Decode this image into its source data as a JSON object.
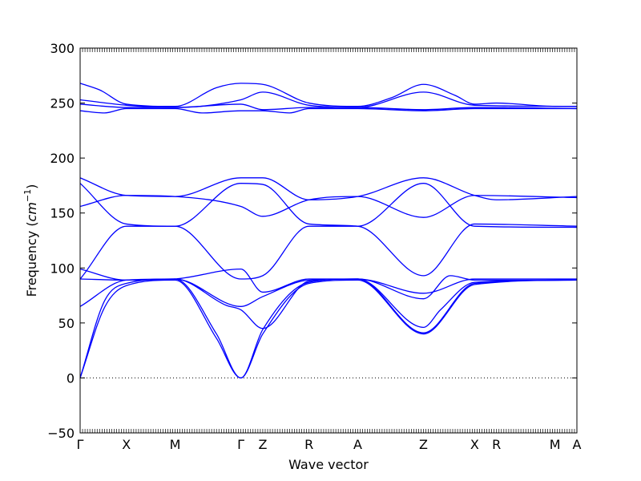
{
  "chart_data": {
    "type": "line",
    "xlabel": "Wave vector",
    "ylabel": "Frequency",
    "ylabel_unit": "cm",
    "ylabel_unit_exp": "−1",
    "ylim": [
      -50,
      300
    ],
    "yticks": [
      -50,
      0,
      50,
      100,
      150,
      200,
      250,
      300
    ],
    "xlim": [
      0,
      10.2
    ],
    "xticks": [
      {
        "pos": 0.0,
        "label": "Γ"
      },
      {
        "pos": 0.95,
        "label": "X"
      },
      {
        "pos": 1.95,
        "label": "M"
      },
      {
        "pos": 3.3,
        "label": "Γ"
      },
      {
        "pos": 3.75,
        "label": "Z"
      },
      {
        "pos": 4.7,
        "label": "R"
      },
      {
        "pos": 5.7,
        "label": "A"
      },
      {
        "pos": 7.05,
        "label": "Z"
      },
      {
        "pos": 8.1,
        "label": "X"
      },
      {
        "pos": 8.55,
        "label": "R"
      },
      {
        "pos": 9.75,
        "label": "M"
      },
      {
        "pos": 10.2,
        "label": "A"
      }
    ],
    "zero_line": true,
    "series_color": "#0000ff",
    "series": [
      {
        "x": [
          0,
          0.4,
          0.95,
          1.95,
          2.8,
          3.3,
          3.75,
          4.7,
          5.7,
          6.4,
          7.05,
          7.7,
          8.1,
          8.55,
          9.75,
          10.2
        ],
        "y": [
          268,
          262,
          249,
          247,
          264,
          268,
          267,
          250,
          247,
          255,
          267,
          257,
          249,
          250,
          247,
          247
        ]
      },
      {
        "x": [
          0,
          0.95,
          1.95,
          3.3,
          3.75,
          4.7,
          5.7,
          7.05,
          8.1,
          10.2
        ],
        "y": [
          253,
          248,
          246,
          253,
          260,
          248,
          246,
          260,
          248,
          247
        ]
      },
      {
        "x": [
          0,
          0.95,
          1.95,
          3.3,
          3.75,
          4.7,
          5.7,
          7.05,
          8.1,
          10.2
        ],
        "y": [
          249,
          246,
          246,
          249,
          244,
          246,
          246,
          244,
          246,
          245
        ]
      },
      {
        "x": [
          0,
          0.5,
          0.95,
          1.95,
          2.5,
          3.3,
          3.75,
          4.3,
          4.7,
          5.7,
          7.05,
          8.1,
          10.2
        ],
        "y": [
          243,
          241,
          245,
          245,
          241,
          243,
          243,
          241,
          245,
          245,
          243,
          245,
          245
        ]
      },
      {
        "x": [
          0,
          0.95,
          1.95,
          3.3,
          3.75,
          4.7,
          5.7,
          7.05,
          8.1,
          8.55,
          10.2
        ],
        "y": [
          182,
          166,
          165,
          182,
          182,
          162,
          165,
          182,
          166,
          162,
          165
        ]
      },
      {
        "x": [
          0,
          0.95,
          1.95,
          3.3,
          3.75,
          4.7,
          5.7,
          7.05,
          8.1,
          10.2
        ],
        "y": [
          177,
          140,
          138,
          177,
          176,
          140,
          138,
          93,
          140,
          138
        ]
      },
      {
        "x": [
          0,
          0.95,
          1.95,
          3.3,
          3.75,
          4.7,
          5.7,
          7.05,
          8.1,
          10.2
        ],
        "y": [
          156,
          166,
          165,
          156,
          147,
          162,
          165,
          146,
          166,
          164
        ]
      },
      {
        "x": [
          0,
          0.95,
          1.95,
          3.3,
          3.75,
          4.7,
          5.7,
          7.05,
          8.1,
          10.2
        ],
        "y": [
          90,
          138,
          138,
          90,
          93,
          138,
          138,
          177,
          138,
          137
        ]
      },
      {
        "x": [
          0,
          0.95,
          1.95,
          3.3,
          3.75,
          4.7,
          5.7,
          7.05,
          8.1,
          10.2
        ],
        "y": [
          99,
          89,
          90,
          99,
          78,
          90,
          90,
          77,
          90,
          90
        ]
      },
      {
        "x": [
          0,
          0.95,
          1.95,
          3.3,
          3.75,
          4.7,
          5.7,
          7.05,
          7.6,
          8.1,
          10.2
        ],
        "y": [
          90,
          89,
          90,
          65,
          74,
          89,
          90,
          72,
          93,
          89,
          89
        ]
      },
      {
        "x": [
          0,
          0.95,
          1.95,
          3.0,
          3.3,
          3.75,
          4.7,
          5.7,
          7.05,
          7.4,
          8.1,
          10.2
        ],
        "y": [
          65,
          89,
          90,
          66,
          62,
          45,
          88,
          90,
          46,
          62,
          87,
          89
        ]
      },
      {
        "x": [
          0,
          0.5,
          0.95,
          1.95,
          2.8,
          3.3,
          3.75,
          4.7,
          5.7,
          7.05,
          8.1,
          10.2
        ],
        "y": [
          0,
          70,
          86,
          90,
          40,
          0,
          44,
          87,
          90,
          41,
          86,
          89
        ]
      },
      {
        "x": [
          0,
          0.5,
          0.95,
          1.95,
          2.8,
          3.3,
          3.75,
          4.7,
          5.7,
          7.05,
          8.1,
          10.2
        ],
        "y": [
          0,
          64,
          84,
          89,
          36,
          0,
          40,
          86,
          89,
          40,
          85,
          89
        ]
      }
    ]
  }
}
